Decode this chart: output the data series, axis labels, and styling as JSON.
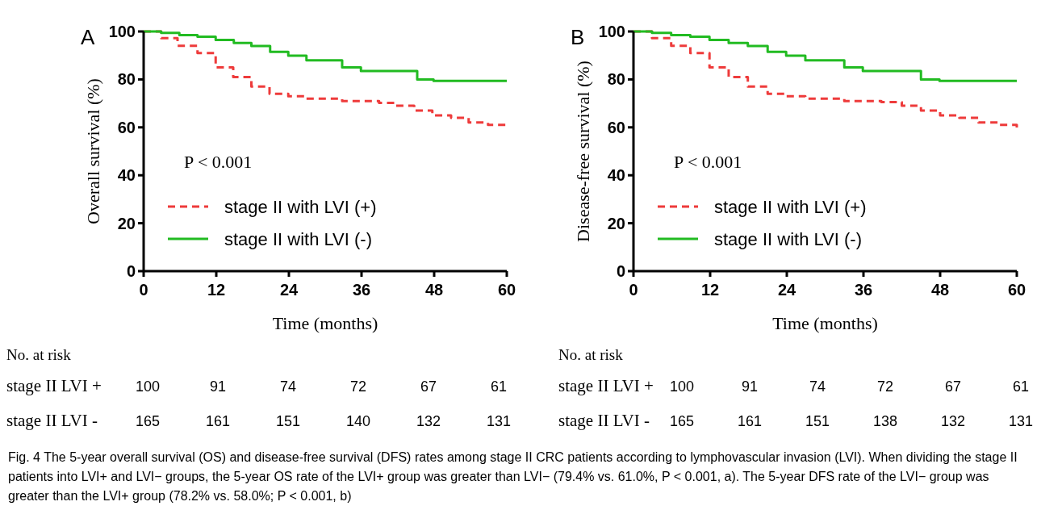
{
  "chart_data": [
    {
      "type": "step",
      "title": "A",
      "xlabel": "Time (months)",
      "ylabel": "Overall survival (%)",
      "xlim": [
        0,
        60
      ],
      "xticks": [
        0,
        12,
        24,
        36,
        48,
        60
      ],
      "ylim": [
        0,
        100
      ],
      "yticks": [
        0,
        20,
        40,
        60,
        80,
        100
      ],
      "legend": "bottom left",
      "grid": false,
      "marker": "none",
      "series": [
        {
          "name": "stage II with LVI (+)",
          "color": "#ee3b3b",
          "line_style": "dashed",
          "x": [
            0,
            2.9,
            5.6,
            8.9,
            11.9,
            14.8,
            17.8,
            20.8,
            23.9,
            26.9,
            32.8,
            38.9,
            41.6,
            44.7,
            47.7,
            50.8,
            53.7,
            56.9,
            60
          ],
          "values": [
            100,
            97.2,
            94,
            91,
            85,
            81,
            77,
            74,
            73,
            72,
            71,
            70.2,
            69,
            67,
            65,
            64,
            62,
            61,
            61
          ]
        },
        {
          "name": "stage II with LVI (-)",
          "color": "#22bb22",
          "line_style": "solid",
          "x": [
            0,
            2.9,
            5.9,
            8.9,
            11.9,
            14.9,
            17.8,
            20.9,
            23.9,
            26.9,
            32.8,
            35.9,
            45.2,
            47.9,
            60
          ],
          "values": [
            100,
            99.4,
            98.5,
            97.8,
            96.5,
            95.2,
            93.9,
            91.5,
            89.9,
            88,
            85,
            83.5,
            80,
            79.4,
            79.4
          ]
        }
      ],
      "annotations": [
        "P < 0.001",
        "No. at risk",
        "stage II LVI +",
        "stage II LVI -",
        "100",
        "91",
        "74",
        "72",
        "67",
        "61",
        "165",
        "161",
        "151",
        "140",
        "132",
        "131",
        "Fig. 4 The 5-year overall survival (OS) and disease-free survival (DFS) rates among stage II CRC patients according to lymphovascular invasion (LVI). When dividing the stage II patients into LVI+ and LVI− groups, the 5-year OS rate of the LVI+ group was greater than LVI− (79.4% vs. 61.0%, P < 0.001, a). The 5-year DFS rate of the LVI− group was greater than the LVI+ group (78.2% vs. 58.0%; P < 0.001, b)"
      ]
    },
    {
      "type": "step",
      "title": "B",
      "xlabel": "Time (months)",
      "ylabel": "Disease-free survival (%)",
      "xlim": [
        0,
        60
      ],
      "xticks": [
        0,
        12,
        24,
        36,
        48,
        60
      ],
      "ylim": [
        0,
        100
      ],
      "yticks": [
        0,
        20,
        40,
        60,
        80,
        100
      ],
      "legend": "bottom left",
      "grid": false,
      "marker": "none",
      "series": [
        {
          "name": "stage II with LVI (+)",
          "color": "#ee3b3b",
          "line_style": "dashed",
          "x": [
            0,
            2.9,
            5.9,
            8.9,
            11.9,
            14.9,
            17.9,
            21,
            23.9,
            26.9,
            33,
            38.8,
            42,
            45,
            48,
            51,
            54,
            57,
            60
          ],
          "values": [
            100,
            97.2,
            94,
            91,
            85,
            81,
            77,
            74,
            73,
            72,
            71,
            70.5,
            69,
            67,
            65,
            64,
            62,
            61,
            58.5
          ]
        },
        {
          "name": "stage II with LVI (-)",
          "color": "#22bb22",
          "line_style": "solid",
          "x": [
            0,
            2.9,
            5.9,
            8.9,
            11.9,
            14.9,
            17.9,
            21,
            23.9,
            26.9,
            33,
            35.9,
            45,
            47.9,
            60
          ],
          "values": [
            100,
            99.4,
            98.5,
            97.8,
            96.5,
            95.2,
            93.9,
            91.5,
            89.9,
            88,
            85,
            83.5,
            80,
            79.4,
            79.4
          ]
        }
      ],
      "annotations": [
        "P < 0.001",
        "No. at risk",
        "stage II LVI +",
        "stage II LVI -",
        "100",
        "91",
        "74",
        "72",
        "67",
        "61",
        "165",
        "161",
        "151",
        "138",
        "132",
        "131"
      ]
    }
  ]
}
